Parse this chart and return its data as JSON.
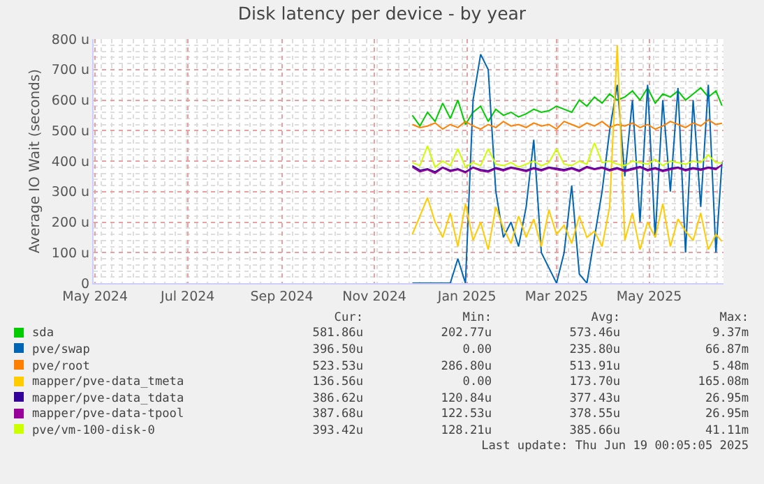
{
  "chart_data": {
    "type": "line",
    "title": "Disk latency per device - by year",
    "ylabel": "Average IO Wait (seconds)",
    "x": [
      "2024-11-26",
      "2024-12-01",
      "2024-12-06",
      "2024-12-11",
      "2024-12-16",
      "2024-12-21",
      "2024-12-26",
      "2024-12-31",
      "2025-01-05",
      "2025-01-10",
      "2025-01-15",
      "2025-01-20",
      "2025-01-25",
      "2025-01-30",
      "2025-02-04",
      "2025-02-09",
      "2025-02-14",
      "2025-02-19",
      "2025-02-24",
      "2025-03-01",
      "2025-03-06",
      "2025-03-11",
      "2025-03-16",
      "2025-03-21",
      "2025-03-26",
      "2025-03-31",
      "2025-04-05",
      "2025-04-10",
      "2025-04-15",
      "2025-04-20",
      "2025-04-25",
      "2025-04-30",
      "2025-05-05",
      "2025-05-10",
      "2025-05-15",
      "2025-05-20",
      "2025-05-25",
      "2025-05-30",
      "2025-06-04",
      "2025-06-09",
      "2025-06-14",
      "2025-06-18"
    ],
    "series": [
      {
        "name": "sda",
        "color": "#00cc00",
        "values": [
          550,
          515,
          560,
          530,
          590,
          540,
          600,
          520,
          560,
          580,
          530,
          570,
          550,
          560,
          545,
          555,
          570,
          560,
          565,
          580,
          570,
          560,
          600,
          580,
          610,
          590,
          620,
          600,
          610,
          630,
          600,
          640,
          590,
          620,
          610,
          630,
          600,
          620,
          640,
          610,
          630,
          582
        ]
      },
      {
        "name": "pve/swap",
        "color": "#0066b3",
        "values": [
          0,
          0,
          0,
          0,
          0,
          0,
          80,
          0,
          600,
          750,
          700,
          300,
          150,
          200,
          120,
          250,
          470,
          100,
          50,
          0,
          100,
          320,
          30,
          0,
          150,
          300,
          500,
          650,
          350,
          600,
          200,
          650,
          150,
          600,
          300,
          640,
          100,
          600,
          250,
          650,
          100,
          397
        ]
      },
      {
        "name": "pve/root",
        "color": "#ff8000",
        "values": [
          520,
          510,
          515,
          525,
          505,
          520,
          510,
          530,
          515,
          505,
          520,
          510,
          530,
          515,
          520,
          510,
          525,
          515,
          520,
          505,
          530,
          520,
          510,
          525,
          515,
          530,
          510,
          520,
          515,
          525,
          510,
          520,
          505,
          515,
          530,
          520,
          510,
          525,
          515,
          535,
          520,
          524
        ]
      },
      {
        "name": "mapper/pve-data_tmeta",
        "color": "#ffcc00",
        "values": [
          160,
          220,
          280,
          200,
          150,
          230,
          120,
          260,
          140,
          200,
          110,
          250,
          180,
          130,
          220,
          150,
          210,
          120,
          240,
          160,
          190,
          130,
          220,
          150,
          170,
          120,
          250,
          780,
          140,
          230,
          110,
          200,
          150,
          260,
          120,
          210,
          170,
          140,
          230,
          110,
          160,
          137
        ]
      },
      {
        "name": "mapper/pve-data_tdata",
        "color": "#330099",
        "values": [
          385,
          370,
          375,
          365,
          380,
          370,
          375,
          365,
          380,
          372,
          368,
          378,
          372,
          380,
          375,
          370,
          378,
          372,
          380,
          376,
          372,
          378,
          370,
          382,
          375,
          380,
          372,
          378,
          370,
          376,
          382,
          372,
          378,
          370,
          376,
          380,
          372,
          378,
          374,
          380,
          376,
          387
        ]
      },
      {
        "name": "mapper/pve-data-tpool",
        "color": "#990099",
        "values": [
          380,
          365,
          372,
          360,
          378,
          366,
          372,
          362,
          378,
          368,
          364,
          375,
          368,
          377,
          372,
          366,
          375,
          368,
          377,
          372,
          368,
          375,
          366,
          379,
          372,
          377,
          368,
          375,
          366,
          372,
          379,
          368,
          375,
          366,
          372,
          377,
          368,
          375,
          370,
          377,
          372,
          388
        ]
      },
      {
        "name": "pve/vm-100-disk-0",
        "color": "#ccff00",
        "values": [
          395,
          385,
          450,
          380,
          400,
          385,
          440,
          380,
          395,
          385,
          440,
          390,
          385,
          395,
          380,
          390,
          400,
          385,
          395,
          440,
          390,
          385,
          400,
          390,
          460,
          395,
          400,
          390,
          385,
          400,
          395,
          390,
          405,
          385,
          400,
          395,
          390,
          400,
          395,
          420,
          395,
          393
        ]
      }
    ],
    "xlim": [
      "2024-04-30",
      "2025-06-19"
    ],
    "xticks": [
      {
        "value": "2024-05-01",
        "label": "May 2024"
      },
      {
        "value": "2024-07-01",
        "label": "Jul 2024"
      },
      {
        "value": "2024-09-01",
        "label": "Sep 2024"
      },
      {
        "value": "2024-11-01",
        "label": "Nov 2024"
      },
      {
        "value": "2025-01-01",
        "label": "Jan 2025"
      },
      {
        "value": "2025-03-01",
        "label": "Mar 2025"
      },
      {
        "value": "2025-05-01",
        "label": "May 2025"
      }
    ],
    "ylim": [
      0,
      800
    ],
    "yticks": [
      0,
      {
        "value": 100,
        "label": "100 u"
      },
      {
        "value": 200,
        "label": "200 u"
      },
      {
        "value": 300,
        "label": "300 u"
      },
      {
        "value": 400,
        "label": "400 u"
      },
      {
        "value": 500,
        "label": "500 u"
      },
      {
        "value": 600,
        "label": "600 u"
      },
      {
        "value": 700,
        "label": "700 u"
      },
      {
        "value": 800,
        "label": "800 u"
      }
    ],
    "grid": true,
    "legend": "bottom",
    "marker": "none",
    "line_style": "solid",
    "annotations": [
      "Cur:",
      "Min:",
      "Avg:",
      "Max:",
      "581.86u",
      "202.77u",
      "573.46u",
      "9.37m",
      "396.50u",
      "0.00",
      "235.80u",
      "66.87m",
      "523.53u",
      "286.80u",
      "513.91u",
      "5.48m",
      "136.56u",
      "0.00",
      "173.70u",
      "165.08m",
      "386.62u",
      "120.84u",
      "377.43u",
      "26.95m",
      "387.68u",
      "122.53u",
      "378.55u",
      "26.95m",
      "393.42u",
      "128.21u",
      "385.66u",
      "41.11m",
      "Last update: Thu Jun 19 00:05:05 2025"
    ]
  }
}
